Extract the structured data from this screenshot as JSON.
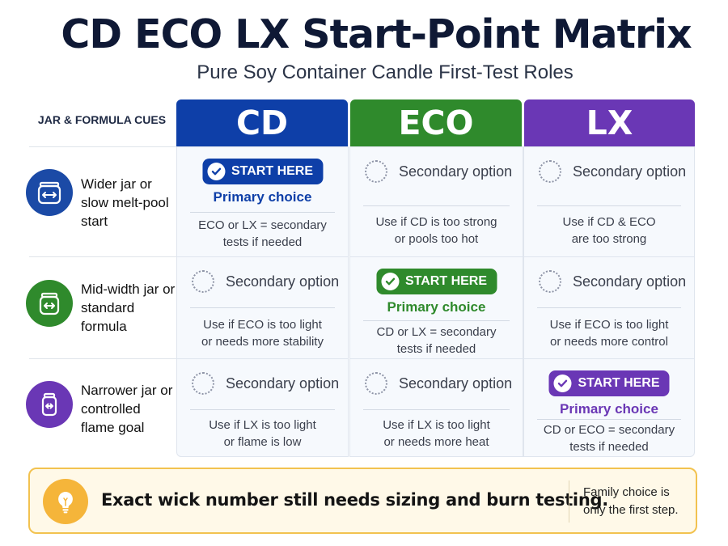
{
  "title": "CD ECO LX Start-Point Matrix",
  "subtitle": "Pure Soy Container Candle First-Test Roles",
  "cues_header": "JAR & FORMULA CUES",
  "colors": {
    "cd": "#0e3fa8",
    "eco": "#2f8a2c",
    "lx": "#6a37b5",
    "footer_border": "#f2c24f",
    "bulb": "#f5b53a"
  },
  "columns": [
    {
      "label": "CD"
    },
    {
      "label": "ECO"
    },
    {
      "label": "LX"
    }
  ],
  "rows": [
    {
      "label_lines": [
        "Wider jar or",
        "slow melt-pool",
        "start"
      ],
      "icon": "wide-jar-icon",
      "cells": [
        {
          "type": "primary",
          "badge": "START HERE",
          "primary": "Primary choice",
          "note": [
            "ECO or LX = secondary",
            "tests if needed"
          ]
        },
        {
          "type": "secondary",
          "label": "Secondary option",
          "note": [
            "Use if CD is too strong",
            "or pools too hot"
          ]
        },
        {
          "type": "secondary",
          "label": "Secondary option",
          "note": [
            "Use if CD & ECO",
            "are too strong"
          ]
        }
      ]
    },
    {
      "label_lines": [
        "Mid-width jar or",
        "standard",
        "formula"
      ],
      "icon": "mid-jar-icon",
      "cells": [
        {
          "type": "secondary",
          "label": "Secondary option",
          "note": [
            "Use if ECO is too light",
            "or needs more stability"
          ]
        },
        {
          "type": "primary",
          "badge": "START HERE",
          "primary": "Primary choice",
          "note": [
            "CD or LX = secondary",
            "tests if needed"
          ]
        },
        {
          "type": "secondary",
          "label": "Secondary option",
          "note": [
            "Use if ECO is too light",
            "or needs more control"
          ]
        }
      ]
    },
    {
      "label_lines": [
        "Narrower jar or",
        "controlled",
        "flame goal"
      ],
      "icon": "narrow-jar-icon",
      "cells": [
        {
          "type": "secondary",
          "label": "Secondary option",
          "note": [
            "Use if LX is too light",
            "or flame is low"
          ]
        },
        {
          "type": "secondary",
          "label": "Secondary option",
          "note": [
            "Use if LX is too light",
            "or needs more heat"
          ]
        },
        {
          "type": "primary",
          "badge": "START HERE",
          "primary": "Primary choice",
          "note": [
            "CD or ECO = secondary",
            "tests if needed"
          ]
        }
      ]
    }
  ],
  "footer": {
    "icon": "lightbulb-icon",
    "main": "Exact wick number still needs sizing and burn testing.",
    "side_lines": [
      "Family choice is",
      "only the first step."
    ]
  }
}
